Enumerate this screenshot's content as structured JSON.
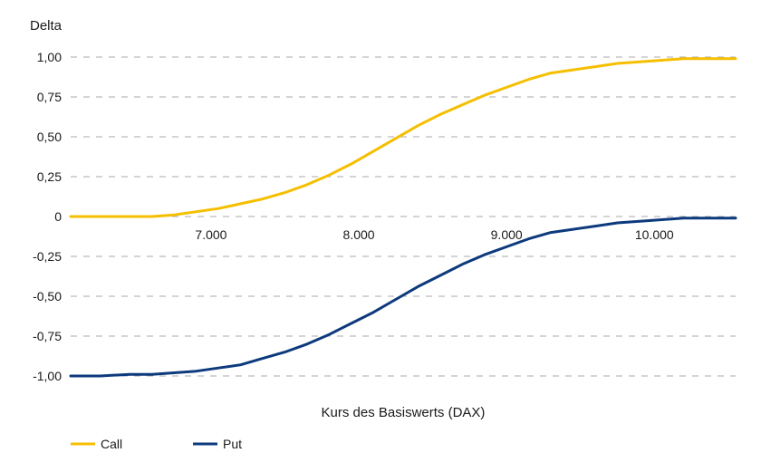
{
  "chart_data": {
    "type": "line",
    "ylabel": "Delta",
    "xlabel": "Kurs des Basiswerts (DAX)",
    "xlim": [
      6050,
      10550
    ],
    "ylim": [
      -1.0,
      1.0
    ],
    "x_ticks": [
      7000,
      8000,
      9000,
      10000
    ],
    "x_tick_labels": [
      "7.000",
      "8.000",
      "9.000",
      "10.000"
    ],
    "y_ticks": [
      1.0,
      0.75,
      0.5,
      0.25,
      0,
      -0.25,
      -0.5,
      -0.75,
      -1.0
    ],
    "y_tick_labels": [
      "1,00",
      "0,75",
      "0,50",
      "0,25",
      "0",
      "-0,25",
      "-0,50",
      "-0,75",
      "-1,00"
    ],
    "grid": "horizontal dashed",
    "legend_position": "bottom-left",
    "series": [
      {
        "name": "Call",
        "color": "#F5BF00",
        "x": [
          6050,
          6250,
          6450,
          6600,
          6750,
          6900,
          7050,
          7200,
          7350,
          7500,
          7650,
          7800,
          7950,
          8100,
          8250,
          8400,
          8550,
          8700,
          8850,
          9000,
          9150,
          9300,
          9450,
          9600,
          9750,
          9900,
          10050,
          10200,
          10350,
          10500,
          10550
        ],
        "values": [
          0.0,
          0.0,
          0.0,
          0.0,
          0.01,
          0.03,
          0.05,
          0.08,
          0.11,
          0.15,
          0.2,
          0.26,
          0.33,
          0.41,
          0.49,
          0.57,
          0.64,
          0.7,
          0.76,
          0.81,
          0.86,
          0.9,
          0.92,
          0.94,
          0.96,
          0.97,
          0.98,
          0.99,
          0.99,
          0.99,
          0.99
        ]
      },
      {
        "name": "Put",
        "color": "#0D3A7D",
        "x": [
          6050,
          6250,
          6450,
          6600,
          6750,
          6900,
          7050,
          7200,
          7350,
          7500,
          7650,
          7800,
          7950,
          8100,
          8250,
          8400,
          8550,
          8700,
          8850,
          9000,
          9150,
          9300,
          9450,
          9600,
          9750,
          9900,
          10050,
          10200,
          10350,
          10500,
          10550
        ],
        "values": [
          -1.0,
          -1.0,
          -0.99,
          -0.99,
          -0.98,
          -0.97,
          -0.95,
          -0.93,
          -0.89,
          -0.85,
          -0.8,
          -0.74,
          -0.67,
          -0.6,
          -0.52,
          -0.44,
          -0.37,
          -0.3,
          -0.24,
          -0.19,
          -0.14,
          -0.1,
          -0.08,
          -0.06,
          -0.04,
          -0.03,
          -0.02,
          -0.01,
          -0.01,
          -0.01,
          -0.01
        ]
      }
    ]
  }
}
